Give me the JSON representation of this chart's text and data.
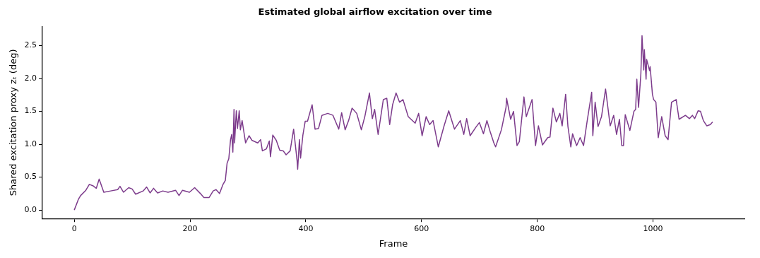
{
  "chart_data": {
    "type": "line",
    "title": "Estimated global airflow excitation over time",
    "xlabel": "Frame",
    "ylabel": "Shared excitation proxy zₜ (deg)",
    "x": [
      0,
      7,
      11,
      20,
      26,
      32,
      38,
      43,
      51,
      63,
      75,
      79,
      85,
      94,
      100,
      106,
      119,
      125,
      131,
      137,
      144,
      153,
      162,
      175,
      181,
      187,
      199,
      208,
      218,
      224,
      233,
      240,
      245,
      251,
      257,
      261,
      264,
      267,
      270,
      272,
      274,
      276,
      277,
      280,
      282,
      285,
      287,
      290,
      296,
      302,
      307,
      317,
      322,
      325,
      332,
      337,
      339,
      343,
      349,
      355,
      361,
      366,
      373,
      379,
      385,
      386,
      389,
      391,
      395,
      399,
      403,
      411,
      416,
      422,
      428,
      438,
      447,
      457,
      462,
      468,
      474,
      480,
      488,
      496,
      502,
      510,
      515,
      519,
      525,
      534,
      540,
      545,
      550,
      556,
      562,
      568,
      577,
      589,
      595,
      601,
      608,
      614,
      620,
      629,
      639,
      647,
      657,
      667,
      673,
      678,
      684,
      694,
      700,
      707,
      713,
      719,
      725,
      728,
      738,
      746,
      747,
      754,
      759,
      765,
      769,
      777,
      781,
      791,
      797,
      802,
      809,
      818,
      822,
      827,
      833,
      839,
      843,
      849,
      853,
      858,
      861,
      868,
      874,
      880,
      886,
      894,
      896,
      900,
      905,
      911,
      918,
      926,
      932,
      937,
      942,
      946,
      949,
      952,
      960,
      967,
      970,
      972,
      975,
      979,
      981,
      984,
      985,
      988,
      989,
      994,
      995,
      999,
      1001,
      1005,
      1009,
      1015,
      1021,
      1026,
      1032,
      1040,
      1045,
      1056,
      1063,
      1068,
      1072,
      1078,
      1082,
      1087,
      1093,
      1099,
      1103
    ],
    "series": [
      {
        "color": "#7d3c8c",
        "values": [
          0,
          0.16,
          0.22,
          0.3,
          0.39,
          0.37,
          0.33,
          0.47,
          0.27,
          0.29,
          0.31,
          0.36,
          0.27,
          0.34,
          0.32,
          0.24,
          0.29,
          0.35,
          0.26,
          0.33,
          0.26,
          0.29,
          0.27,
          0.3,
          0.22,
          0.3,
          0.27,
          0.34,
          0.25,
          0.19,
          0.19,
          0.29,
          0.31,
          0.25,
          0.39,
          0.45,
          0.71,
          0.78,
          1.07,
          1.15,
          0.88,
          1.53,
          1.02,
          1.51,
          1.24,
          1.51,
          1.22,
          1.36,
          1.02,
          1.13,
          1.06,
          1.02,
          1.07,
          0.9,
          0.93,
          1.05,
          0.81,
          1.14,
          1.06,
          0.91,
          0.9,
          0.84,
          0.9,
          1.23,
          0.75,
          0.62,
          1.07,
          0.79,
          1.14,
          1.35,
          1.35,
          1.6,
          1.23,
          1.24,
          1.44,
          1.47,
          1.44,
          1.23,
          1.48,
          1.22,
          1.36,
          1.55,
          1.47,
          1.22,
          1.42,
          1.78,
          1.39,
          1.53,
          1.15,
          1.68,
          1.7,
          1.3,
          1.6,
          1.78,
          1.64,
          1.68,
          1.42,
          1.32,
          1.47,
          1.13,
          1.42,
          1.3,
          1.36,
          0.96,
          1.28,
          1.51,
          1.23,
          1.36,
          1.15,
          1.39,
          1.13,
          1.26,
          1.33,
          1.16,
          1.36,
          1.18,
          1.02,
          0.96,
          1.22,
          1.56,
          1.7,
          1.38,
          1.5,
          0.98,
          1.04,
          1.72,
          1.42,
          1.68,
          0.98,
          1.28,
          0.99,
          1.1,
          1.11,
          1.55,
          1.34,
          1.47,
          1.28,
          1.76,
          1.27,
          0.96,
          1.16,
          0.98,
          1.1,
          0.98,
          1.34,
          1.79,
          1.13,
          1.64,
          1.27,
          1.42,
          1.84,
          1.28,
          1.44,
          1.15,
          1.38,
          0.98,
          0.98,
          1.45,
          1.21,
          1.5,
          1.53,
          1.99,
          1.56,
          2.07,
          2.65,
          2.13,
          2.44,
          1.99,
          2.29,
          2.12,
          2.18,
          1.76,
          1.68,
          1.64,
          1.1,
          1.42,
          1.13,
          1.07,
          1.64,
          1.68,
          1.38,
          1.44,
          1.39,
          1.44,
          1.39,
          1.51,
          1.5,
          1.36,
          1.28,
          1.3,
          1.34
        ]
      }
    ],
    "xlim": [
      -55,
      1158
    ],
    "ylim": [
      -0.13,
      2.79
    ],
    "xticks": [
      0,
      200,
      400,
      600,
      800,
      1000
    ],
    "yticks": [
      {
        "value": 0,
        "label": "0.0"
      },
      0.5,
      {
        "value": 1,
        "label": "1.0"
      },
      1.5,
      {
        "value": 2,
        "label": "2.0"
      },
      2.5
    ],
    "grid": false,
    "legend": false,
    "marker": "none",
    "line_style": "solid"
  }
}
